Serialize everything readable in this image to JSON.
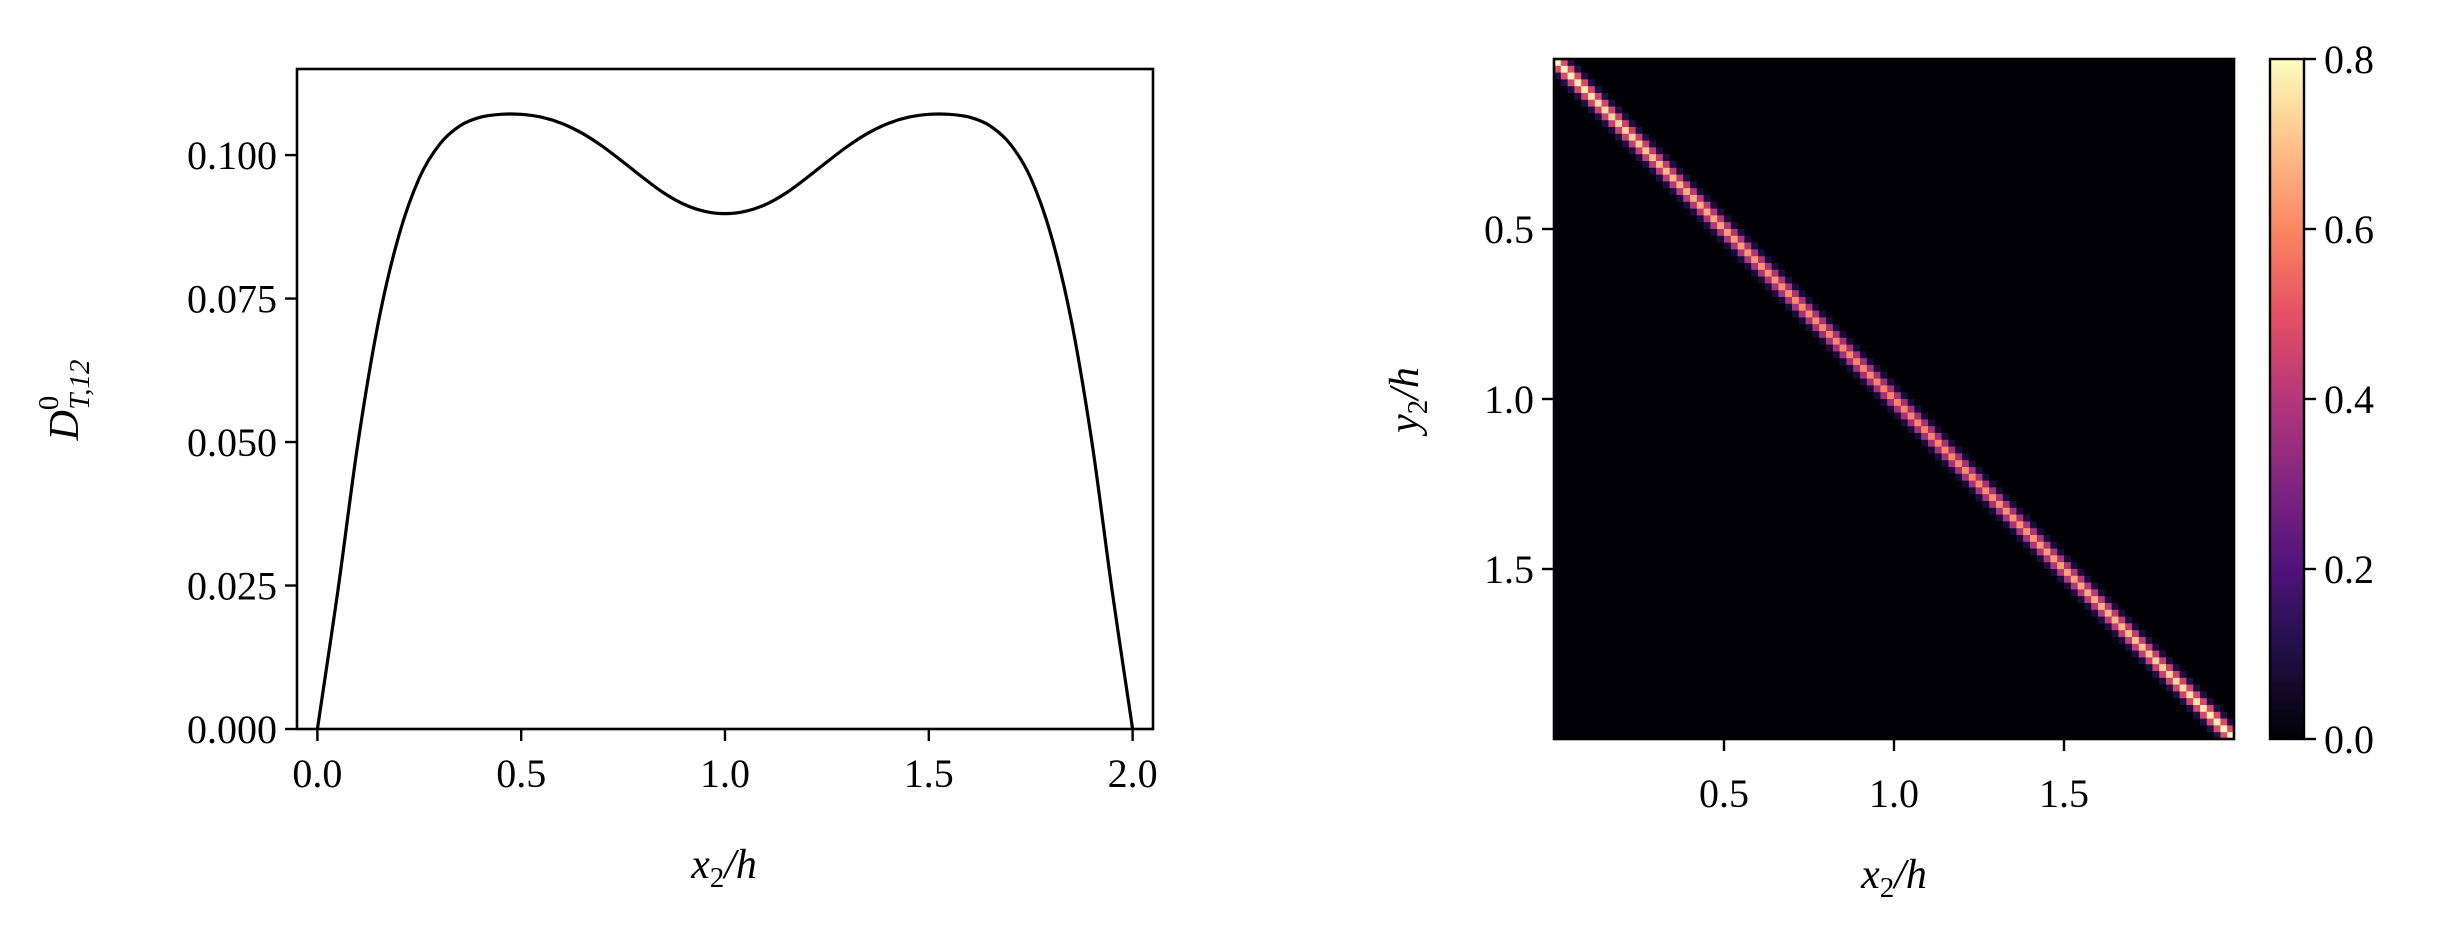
{
  "chart_data": [
    {
      "type": "line",
      "title": "",
      "xlabel": {
        "base": "x",
        "sub": "2",
        "tail": "/h"
      },
      "ylabel": {
        "base": "D",
        "sup": "0",
        "sub": "T,12"
      },
      "xlim": [
        -0.05,
        2.05
      ],
      "ylim": [
        0.0,
        0.115
      ],
      "xticks": [
        0.0,
        0.5,
        1.0,
        1.5,
        2.0
      ],
      "xtick_labels": [
        "0.0",
        "0.5",
        "1.0",
        "1.5",
        "2.0"
      ],
      "yticks": [
        0.0,
        0.025,
        0.05,
        0.075,
        0.1
      ],
      "ytick_labels": [
        "0.000",
        "0.025",
        "0.050",
        "0.075",
        "0.100"
      ],
      "grid": false,
      "series": [
        {
          "color": "#000000",
          "x": [
            0.0,
            0.05,
            0.1,
            0.15,
            0.2,
            0.25,
            0.3,
            0.35,
            0.4,
            0.45,
            0.5,
            0.55,
            0.6,
            0.65,
            0.7,
            0.75,
            0.8,
            0.85,
            0.9,
            0.95,
            1.0,
            1.05,
            1.1,
            1.15,
            1.2,
            1.25,
            1.3,
            1.35,
            1.4,
            1.45,
            1.5,
            1.55,
            1.6,
            1.65,
            1.7,
            1.75,
            1.8,
            1.85,
            1.9,
            1.95,
            2.0
          ],
          "y": [
            0.0,
            0.024,
            0.05,
            0.071,
            0.086,
            0.096,
            0.1019,
            0.1051,
            0.1066,
            0.1071,
            0.1071,
            0.1066,
            0.1055,
            0.1038,
            0.1015,
            0.0988,
            0.096,
            0.0934,
            0.0914,
            0.0902,
            0.0898,
            0.0902,
            0.0914,
            0.0934,
            0.096,
            0.0988,
            0.1015,
            0.1038,
            0.1055,
            0.1066,
            0.1071,
            0.1071,
            0.1066,
            0.1051,
            0.1019,
            0.096,
            0.086,
            0.071,
            0.05,
            0.024,
            0.0
          ]
        }
      ]
    },
    {
      "type": "heatmap",
      "title": "",
      "xlabel": {
        "base": "x",
        "sub": "2",
        "tail": "/h"
      },
      "ylabel": {
        "base": "y",
        "sub": "2",
        "tail": "/h"
      },
      "extent": [
        0.0,
        2.0,
        2.0,
        0.0
      ],
      "xticks": [
        0.5,
        1.0,
        1.5
      ],
      "xtick_labels": [
        "0.5",
        "1.0",
        "1.5"
      ],
      "yticks": [
        0.5,
        1.0,
        1.5
      ],
      "ytick_labels": [
        "0.5",
        "1.0",
        "1.5"
      ],
      "grid": false,
      "colormap": "magma",
      "grid_size": 100,
      "description_of_values": "diagonal band",
      "diagonal_peak_ends": 0.8,
      "diagonal_peak_center": 0.6,
      "band_width": 0.02,
      "colorbar": {
        "range": [
          0.0,
          0.8
        ],
        "ticks": [
          0.0,
          0.2,
          0.4,
          0.6,
          0.8
        ],
        "tick_labels": [
          "0.0",
          "0.2",
          "0.4",
          "0.6",
          "0.8"
        ]
      },
      "colormap_stops": [
        "#000004",
        "#1c1044",
        "#4f127b",
        "#812581",
        "#b5367a",
        "#e55064",
        "#fb8761",
        "#fec287",
        "#fcfdbf"
      ]
    }
  ]
}
